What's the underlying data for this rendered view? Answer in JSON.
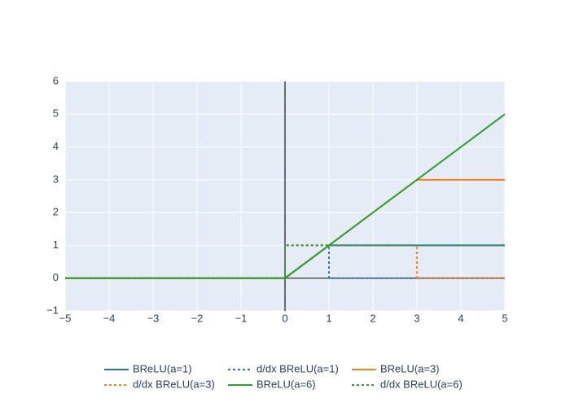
{
  "chart_data": {
    "type": "line",
    "xlim": [
      -5,
      5
    ],
    "ylim": [
      -1,
      6
    ],
    "xticks": [
      {
        "value": -5,
        "label": "−5"
      },
      {
        "value": -4,
        "label": "−4"
      },
      {
        "value": -3,
        "label": "−3"
      },
      {
        "value": -2,
        "label": "−2"
      },
      {
        "value": -1,
        "label": "−1"
      },
      0,
      1,
      2,
      3,
      4,
      5
    ],
    "yticks": [
      {
        "value": -1,
        "label": "−1"
      },
      0,
      1,
      2,
      3,
      4,
      5,
      6
    ],
    "grid": true,
    "legend": "bottom",
    "series": [
      {
        "name": "BReLU(a=1)",
        "color": "#1f77b4",
        "dash": false,
        "x": [
          -5,
          0,
          1,
          5
        ],
        "values": [
          0,
          0,
          1,
          1
        ]
      },
      {
        "name": "d/dx BReLU(a=1)",
        "color": "#1f77b4",
        "dash": true,
        "x": [
          -5,
          0,
          0,
          1,
          1,
          5
        ],
        "values": [
          0,
          0,
          1,
          1,
          0,
          0
        ]
      },
      {
        "name": "BReLU(a=3)",
        "color": "#ff7f0e",
        "dash": false,
        "x": [
          -5,
          0,
          3,
          5
        ],
        "values": [
          0,
          0,
          3,
          3
        ]
      },
      {
        "name": "d/dx BReLU(a=3)",
        "color": "#ff7f0e",
        "dash": true,
        "x": [
          -5,
          0,
          0,
          3,
          3,
          5
        ],
        "values": [
          0,
          0,
          1,
          1,
          0,
          0
        ]
      },
      {
        "name": "BReLU(a=6)",
        "color": "#2ca02c",
        "dash": false,
        "x": [
          -5,
          0,
          5
        ],
        "values": [
          0,
          0,
          5
        ]
      },
      {
        "name": "d/dx BReLU(a=6)",
        "color": "#2ca02c",
        "dash": true,
        "x": [
          -5,
          0,
          0,
          5
        ],
        "values": [
          0,
          0,
          1,
          1
        ]
      }
    ]
  }
}
